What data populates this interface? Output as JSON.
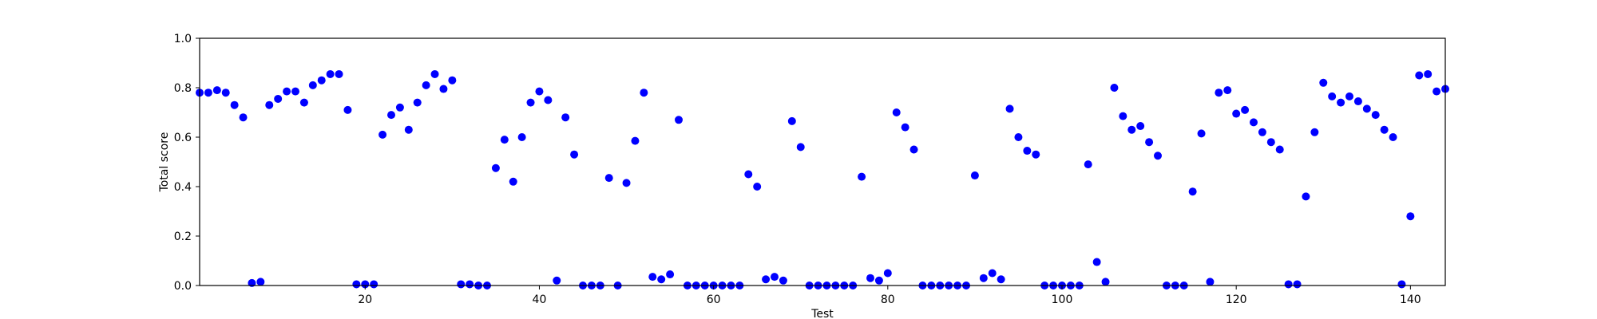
{
  "chart_data": {
    "type": "scatter",
    "xlabel": "Test",
    "ylabel": "Total score",
    "xlim": [
      1,
      144
    ],
    "ylim": [
      0,
      1
    ],
    "xticks": [
      20,
      40,
      60,
      80,
      100,
      120,
      140
    ],
    "yticks": [
      0.0,
      0.2,
      0.4,
      0.6,
      0.8,
      1.0
    ],
    "xtick_labels": [
      "20",
      "40",
      "60",
      "80",
      "100",
      "120",
      "140"
    ],
    "ytick_labels": [
      "0.0",
      "0.2",
      "0.4",
      "0.6",
      "0.8",
      "1.0"
    ],
    "grid": false,
    "marker_color": "#0000ff",
    "series": [
      {
        "x": [
          1,
          2,
          3,
          4,
          5,
          6,
          7,
          8,
          9,
          10,
          11,
          12,
          13,
          14,
          15,
          16,
          17,
          18,
          19,
          20,
          21,
          22,
          23,
          24,
          25,
          26,
          27,
          28,
          29,
          30,
          31,
          32,
          33,
          34,
          35,
          36,
          37,
          38,
          39,
          40,
          41,
          42,
          43,
          44,
          45,
          46,
          47,
          48,
          49,
          50,
          51,
          52,
          53,
          54,
          55,
          56,
          57,
          58,
          59,
          60,
          61,
          62,
          63,
          64,
          65,
          66,
          67,
          68,
          69,
          70,
          71,
          72,
          73,
          74,
          75,
          76,
          77,
          78,
          79,
          80,
          81,
          82,
          83,
          84,
          85,
          86,
          87,
          88,
          89,
          90,
          91,
          92,
          93,
          94,
          95,
          96,
          97,
          98,
          99,
          100,
          101,
          102,
          103,
          104,
          105,
          106,
          107,
          108,
          109,
          110,
          111,
          112,
          113,
          114,
          115,
          116,
          117,
          118,
          119,
          120,
          121,
          122,
          123,
          124,
          125,
          126,
          127,
          128,
          129,
          130,
          131,
          132,
          133,
          134,
          135,
          136,
          137,
          138,
          139,
          140,
          141,
          142,
          143,
          144
        ],
        "y": [
          0.78,
          0.78,
          0.79,
          0.78,
          0.73,
          0.68,
          0.01,
          0.015,
          0.73,
          0.755,
          0.785,
          0.785,
          0.74,
          0.81,
          0.83,
          0.855,
          0.855,
          0.71,
          0.005,
          0.005,
          0.005,
          0.61,
          0.69,
          0.72,
          0.63,
          0.74,
          0.81,
          0.855,
          0.795,
          0.83,
          0.005,
          0.005,
          0.0,
          0.0,
          0.475,
          0.59,
          0.42,
          0.6,
          0.74,
          0.785,
          0.75,
          0.02,
          0.68,
          0.53,
          0.0,
          0.0,
          0.0,
          0.435,
          0.0,
          0.415,
          0.585,
          0.78,
          0.035,
          0.025,
          0.045,
          0.67,
          0.0,
          0.0,
          0.0,
          0.0,
          0.0,
          0.0,
          0.0,
          0.45,
          0.4,
          0.025,
          0.035,
          0.02,
          0.665,
          0.56,
          0.0,
          0.0,
          0.0,
          0.0,
          0.0,
          0.0,
          0.44,
          0.03,
          0.02,
          0.05,
          0.7,
          0.64,
          0.55,
          0.0,
          0.0,
          0.0,
          0.0,
          0.0,
          0.0,
          0.445,
          0.03,
          0.05,
          0.025,
          0.715,
          0.6,
          0.545,
          0.53,
          0.0,
          0.0,
          0.0,
          0.0,
          0.0,
          0.49,
          0.095,
          0.015,
          0.8,
          0.685,
          0.63,
          0.645,
          0.58,
          0.525,
          0.0,
          0.0,
          0.0,
          0.38,
          0.615,
          0.015,
          0.78,
          0.79,
          0.695,
          0.71,
          0.66,
          0.62,
          0.58,
          0.55,
          0.005,
          0.005,
          0.36,
          0.62,
          0.82,
          0.765,
          0.74,
          0.765,
          0.745,
          0.715,
          0.69,
          0.63,
          0.6,
          0.005,
          0.28,
          0.85,
          0.855,
          0.785,
          0.795
        ]
      }
    ]
  }
}
